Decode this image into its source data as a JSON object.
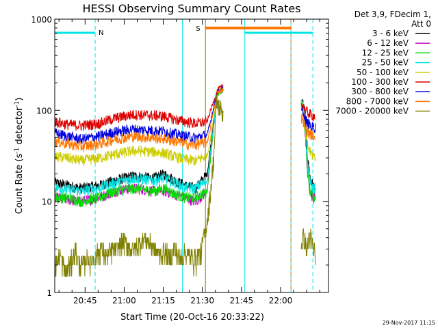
{
  "chart_data": {
    "type": "line",
    "title": "HESSI Observing Summary Count Rates",
    "xlabel": "Start Time (20-Oct-16 20:33:22)",
    "ylabel": "Count Rate (s^-1 detector^-1)",
    "ylabel_parts": {
      "base": "Count Rate (s",
      "sup1": "-1",
      "mid": " detector",
      "sup2": "-1",
      "end": ")"
    },
    "yscale": "log",
    "ylim": [
      1,
      1000
    ],
    "xlim_minutes": [
      0,
      105
    ],
    "x_ticks": [
      {
        "label": "20:45",
        "minute": 11.63
      },
      {
        "label": "21:00",
        "minute": 26.63
      },
      {
        "label": "21:15",
        "minute": 41.63
      },
      {
        "label": "21:30",
        "minute": 56.63
      },
      {
        "label": "21:45",
        "minute": 71.63
      },
      {
        "label": "22:00",
        "minute": 86.63
      }
    ],
    "y_ticks": [
      {
        "label": "1",
        "value": 1
      },
      {
        "label": "10",
        "value": 10
      },
      {
        "label": "100",
        "value": 100
      },
      {
        "label": "1000",
        "value": 1000
      }
    ],
    "legend_header": [
      "Det 3,9, FDecim 1,",
      "Att 0"
    ],
    "legend_position": "right",
    "series": [
      {
        "name": "3 - 6 keV",
        "color": "#000000",
        "x": [
          0,
          5,
          10,
          17,
          23,
          30,
          38,
          42,
          46,
          50,
          54,
          58.5,
          59.5,
          60.5,
          61.5,
          62.5,
          64.6,
          95.2,
          96,
          97,
          98,
          99,
          100
        ],
        "y": [
          16,
          15,
          14,
          15,
          17,
          19,
          18,
          20,
          17,
          15,
          14,
          20,
          35,
          60,
          100,
          160,
          175,
          120,
          90,
          30,
          18,
          15,
          14
        ]
      },
      {
        "name": "6 - 12 keV",
        "color": "#cc00cc",
        "x": [
          0,
          5,
          10,
          17,
          23,
          30,
          38,
          42,
          46,
          50,
          54,
          58.5,
          59.5,
          60.5,
          61.5,
          62.5,
          64.6,
          95.2,
          96,
          97,
          98,
          99,
          100
        ],
        "y": [
          11,
          10.5,
          10,
          11,
          13,
          14,
          13,
          13,
          12,
          11,
          10,
          13,
          25,
          50,
          90,
          150,
          165,
          110,
          60,
          20,
          13,
          11,
          11
        ]
      },
      {
        "name": "12 - 25 keV",
        "color": "#00dd00",
        "x": [
          0,
          5,
          10,
          17,
          23,
          30,
          38,
          42,
          46,
          50,
          54,
          58.5,
          59.5,
          60.5,
          61.5,
          62.5,
          64.6,
          95.2,
          96,
          97,
          98,
          99,
          100
        ],
        "y": [
          11,
          11,
          10,
          11,
          13,
          14,
          13,
          14,
          12,
          11,
          11,
          13,
          25,
          50,
          90,
          150,
          165,
          110,
          60,
          20,
          13,
          12,
          11
        ]
      },
      {
        "name": "25 - 50 keV",
        "color": "#00e5e5",
        "x": [
          0,
          5,
          10,
          17,
          23,
          30,
          38,
          42,
          46,
          50,
          54,
          58.5,
          59.5,
          60.5,
          61.5,
          62.5,
          64.6,
          95.2,
          96,
          97,
          98,
          99,
          100
        ],
        "y": [
          14,
          13.5,
          13,
          14,
          16,
          18,
          17,
          18,
          16,
          14,
          14,
          17,
          30,
          55,
          95,
          155,
          170,
          115,
          70,
          25,
          16,
          14,
          14
        ]
      },
      {
        "name": "50 - 100 keV",
        "color": "#cccc00",
        "x": [
          0,
          5,
          10,
          17,
          23,
          30,
          38,
          42,
          46,
          50,
          54,
          58.5,
          59.5,
          60.5,
          61.5,
          62.5,
          64.6,
          95.2,
          96,
          97,
          98,
          99,
          100
        ],
        "y": [
          31,
          30,
          28,
          30,
          33,
          36,
          35,
          34,
          31,
          29,
          28,
          32,
          45,
          70,
          105,
          160,
          175,
          115,
          60,
          40,
          35,
          32,
          31
        ]
      },
      {
        "name": "100 - 300 keV",
        "color": "#dd0000",
        "x": [
          0,
          5,
          10,
          17,
          23,
          30,
          38,
          42,
          46,
          50,
          54,
          58.5,
          59.5,
          60.5,
          61.5,
          62.5,
          64.6,
          95.2,
          96,
          97,
          98,
          99,
          100
        ],
        "y": [
          75,
          70,
          68,
          72,
          82,
          90,
          88,
          86,
          80,
          75,
          72,
          75,
          95,
          115,
          140,
          170,
          185,
          115,
          100,
          95,
          90,
          88,
          85
        ]
      },
      {
        "name": "300 - 800 keV",
        "color": "#0000dd",
        "x": [
          0,
          5,
          10,
          17,
          23,
          30,
          38,
          42,
          46,
          50,
          54,
          58.5,
          59.5,
          60.5,
          61.5,
          62.5,
          64.6,
          95.2,
          96,
          97,
          98,
          99,
          100
        ],
        "y": [
          56,
          52,
          48,
          52,
          58,
          62,
          60,
          59,
          55,
          52,
          50,
          54,
          70,
          95,
          125,
          160,
          175,
          95,
          80,
          72,
          68,
          66,
          65
        ]
      },
      {
        "name": "800 - 7000 keV",
        "color": "#ff7700",
        "x": [
          0,
          5,
          10,
          17,
          23,
          30,
          38,
          42,
          46,
          50,
          54,
          58.5,
          59.5,
          60.5,
          61.5,
          62.5,
          64.6,
          95.2,
          96,
          97,
          98,
          99,
          100
        ],
        "y": [
          46,
          43,
          40,
          43,
          48,
          52,
          50,
          49,
          46,
          43,
          42,
          45,
          60,
          85,
          115,
          155,
          170,
          80,
          65,
          58,
          55,
          53,
          52
        ]
      },
      {
        "name": "7000 - 20000 keV",
        "color": "#808000",
        "x": [
          0,
          2,
          4,
          6,
          8,
          10,
          12,
          14,
          16,
          18,
          20,
          22,
          24,
          26,
          28,
          30,
          32,
          34,
          36,
          38,
          40,
          42,
          44,
          46,
          48,
          50,
          52,
          54,
          56,
          57,
          58,
          59,
          60,
          61,
          62,
          94.5,
          95.3,
          96,
          96.8,
          97.5,
          98.2,
          99,
          100
        ],
        "y": [
          2,
          2.5,
          1.7,
          2,
          2.8,
          1.8,
          2.3,
          2.1,
          2.6,
          3,
          2.4,
          2.8,
          3,
          3.6,
          3.3,
          2.8,
          3.2,
          3.8,
          3.5,
          3,
          2.6,
          2.8,
          2.3,
          2.9,
          2.3,
          2.6,
          2.4,
          2.2,
          2.6,
          3.8,
          5,
          8,
          15,
          30,
          120,
          3.2,
          4,
          3.5,
          2.8,
          4.2,
          3.8,
          3,
          2.6
        ]
      }
    ],
    "markers": {
      "cyan_lines_minutes": [
        0,
        15.5,
        49,
        72.9,
        90.6,
        99
      ],
      "cyan_dashed_minutes": [
        15.5,
        99
      ],
      "orange_dashed_minutes": [
        90.6
      ],
      "olive_line_minutes": [
        57.8
      ],
      "night_bars": [
        {
          "label": "N",
          "start": 0,
          "end": 15.5,
          "color": "#00e5e5"
        },
        {
          "label": "",
          "start": 72.9,
          "end": 99,
          "color": "#00e5e5"
        }
      ],
      "saa_bar": {
        "label": "S",
        "start": 57.8,
        "end": 90.6,
        "color": "#ff7700"
      }
    },
    "gaps": [
      [
        64.6,
        94.5
      ]
    ],
    "timestamp": "29-Nov-2017 11:15"
  }
}
